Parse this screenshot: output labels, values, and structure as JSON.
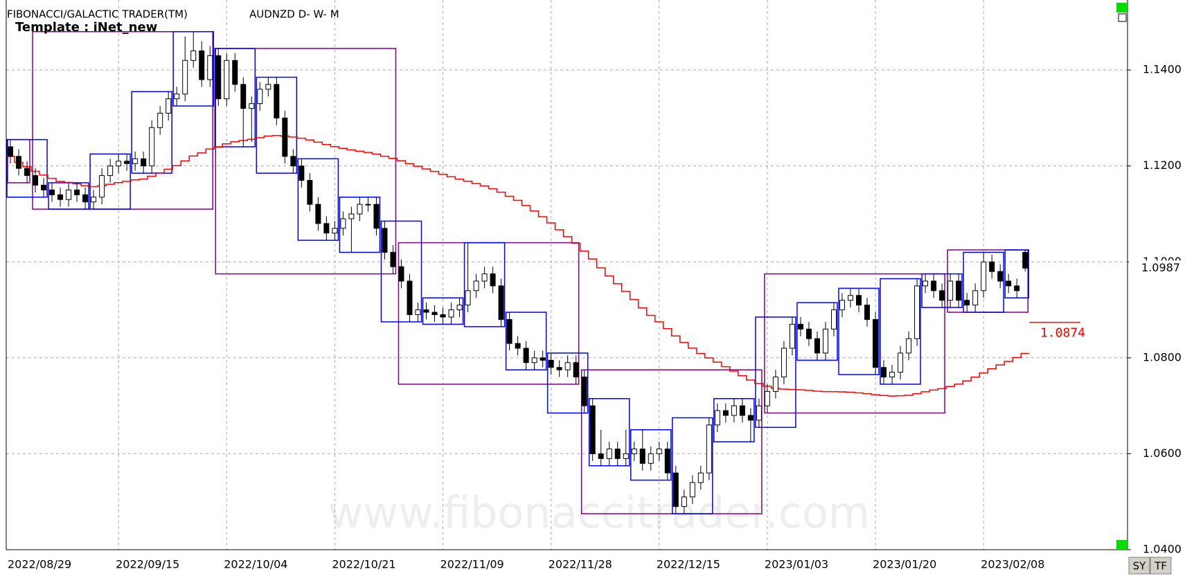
{
  "chart_data": {
    "type": "candlestick",
    "title": "FIBONACCI/GALACTIC TRADER(TM)",
    "subtitle": "AUDNZD D- W- M",
    "template": "Template : iNet_new",
    "watermark": "www.fibonaccitrader.com",
    "categories": [
      "2022/08/29",
      null,
      null,
      null,
      null,
      null,
      null,
      null,
      null,
      null,
      null,
      null,
      null,
      "2022/09/15",
      null,
      null,
      null,
      null,
      null,
      null,
      null,
      null,
      null,
      null,
      null,
      null,
      "2022/10/04",
      null,
      null,
      null,
      null,
      null,
      null,
      null,
      null,
      null,
      null,
      null,
      null,
      "2022/10/21",
      null,
      null,
      null,
      null,
      null,
      null,
      null,
      null,
      null,
      null,
      null,
      null,
      "2022/11/09",
      null,
      null,
      null,
      null,
      null,
      null,
      null,
      null,
      null,
      null,
      null,
      null,
      "2022/11/28",
      null,
      null,
      null,
      null,
      null,
      null,
      null,
      null,
      null,
      null,
      null,
      null,
      "2022/12/15",
      null,
      null,
      null,
      null,
      null,
      null,
      null,
      null,
      null,
      null,
      null,
      null,
      "2023/01/03",
      null,
      null,
      null,
      null,
      null,
      null,
      null,
      null,
      null,
      null,
      null,
      null,
      "2023/01/20",
      null,
      null,
      null,
      null,
      null,
      null,
      null,
      null,
      null,
      null,
      null,
      null,
      "2023/02/08",
      null,
      null,
      null,
      null,
      null
    ],
    "open": [
      1.124,
      1.122,
      1.1195,
      1.118,
      1.116,
      1.115,
      1.114,
      1.113,
      1.115,
      1.114,
      1.1125,
      1.1135,
      1.118,
      1.12,
      1.121,
      1.1205,
      1.1215,
      1.12,
      1.128,
      1.131,
      1.134,
      1.135,
      1.142,
      1.144,
      1.138,
      1.143,
      1.134,
      1.142,
      1.137,
      1.132,
      1.133,
      1.136,
      1.137,
      1.13,
      1.122,
      1.12,
      1.117,
      1.112,
      1.108,
      1.106,
      1.107,
      1.109,
      1.11,
      1.112,
      1.112,
      1.107,
      1.102,
      1.099,
      1.096,
      1.089,
      1.09,
      1.0895,
      1.089,
      1.0885,
      1.09,
      1.091,
      1.094,
      1.096,
      1.0975,
      1.095,
      1.088,
      1.083,
      1.082,
      1.079,
      1.08,
      1.0795,
      1.078,
      1.0775,
      1.079,
      1.076,
      1.07,
      1.06,
      1.059,
      1.061,
      1.059,
      1.06,
      1.061,
      1.058,
      1.06,
      1.061,
      1.056,
      1.049,
      1.051,
      1.054,
      1.056,
      1.066,
      1.069,
      1.068,
      1.07,
      1.068,
      1.067,
      1.07,
      1.073,
      1.076,
      1.082,
      1.087,
      1.086,
      1.084,
      1.081,
      1.086,
      1.09,
      1.092,
      1.093,
      1.091,
      1.088,
      1.078,
      1.076,
      1.077,
      1.081,
      1.084,
      1.095,
      1.096,
      1.094,
      1.092,
      1.096,
      1.092,
      1.091,
      1.094,
      1.1,
      1.098,
      1.096,
      1.095,
      1.102
    ],
    "high": [
      1.1255,
      1.1235,
      1.121,
      1.1195,
      1.1175,
      1.1165,
      1.1155,
      1.1165,
      1.1165,
      1.1155,
      1.115,
      1.1195,
      1.1215,
      1.1225,
      1.1225,
      1.123,
      1.123,
      1.1295,
      1.1325,
      1.1355,
      1.1365,
      1.147,
      1.148,
      1.146,
      1.145,
      1.1445,
      1.1435,
      1.1435,
      1.1385,
      1.1345,
      1.1375,
      1.1385,
      1.1385,
      1.1315,
      1.1235,
      1.1215,
      1.1185,
      1.1135,
      1.1095,
      1.1085,
      1.1105,
      1.1115,
      1.1135,
      1.1135,
      1.1135,
      1.1085,
      1.1035,
      1.1005,
      1.0975,
      1.0915,
      1.0915,
      1.091,
      1.0905,
      1.0915,
      1.0925,
      1.104,
      1.0975,
      1.099,
      1.099,
      1.0965,
      1.0895,
      1.0845,
      1.0835,
      1.0815,
      1.0815,
      1.081,
      1.0795,
      1.0805,
      1.0805,
      1.0775,
      1.0715,
      1.065,
      1.0625,
      1.0625,
      1.065,
      1.0625,
      1.065,
      1.0615,
      1.0625,
      1.0625,
      1.0575,
      1.0525,
      1.0555,
      1.0575,
      1.0675,
      1.0705,
      1.0705,
      1.0715,
      1.0715,
      1.0695,
      1.0715,
      1.0745,
      1.0775,
      1.0835,
      1.0885,
      1.0885,
      1.0875,
      1.0855,
      1.0875,
      1.0915,
      1.0935,
      1.0945,
      1.0945,
      1.0925,
      1.0895,
      1.0795,
      1.0785,
      1.0825,
      1.0855,
      1.0965,
      1.0975,
      1.0975,
      1.0955,
      1.0975,
      1.0975,
      1.0935,
      1.0955,
      1.102,
      1.1015,
      1.0995,
      1.0975,
      1.0965,
      1.1025
    ],
    "low": [
      1.1205,
      1.118,
      1.1165,
      1.1145,
      1.1135,
      1.1125,
      1.1115,
      1.1115,
      1.1125,
      1.111,
      1.111,
      1.112,
      1.1165,
      1.1185,
      1.119,
      1.119,
      1.1185,
      1.1185,
      1.1265,
      1.1295,
      1.1325,
      1.1335,
      1.1405,
      1.1365,
      1.1365,
      1.1325,
      1.1325,
      1.1355,
      1.124,
      1.125,
      1.1315,
      1.1345,
      1.1285,
      1.1205,
      1.1185,
      1.1155,
      1.1105,
      1.1065,
      1.1045,
      1.1045,
      1.1055,
      1.102,
      1.1085,
      1.1105,
      1.1055,
      1.1005,
      1.0975,
      1.0945,
      1.0875,
      1.0875,
      1.088,
      1.0875,
      1.087,
      1.087,
      1.0885,
      1.0895,
      1.0925,
      1.0945,
      1.0935,
      1.0865,
      1.0815,
      1.0805,
      1.0775,
      1.0775,
      1.078,
      1.0765,
      1.076,
      1.076,
      1.0745,
      1.0685,
      1.0585,
      1.0575,
      1.0575,
      1.0575,
      1.0575,
      1.0585,
      1.0565,
      1.0565,
      1.0585,
      1.0545,
      1.0475,
      1.0475,
      1.0495,
      1.0525,
      1.0545,
      1.0645,
      1.0665,
      1.0665,
      1.0665,
      1.0625,
      1.0655,
      1.0685,
      1.0715,
      1.0745,
      1.0805,
      1.0845,
      1.0825,
      1.0795,
      1.0795,
      1.0845,
      1.0885,
      1.0905,
      1.0895,
      1.0865,
      1.0765,
      1.0745,
      1.0745,
      1.0755,
      1.0795,
      1.0825,
      1.0935,
      1.0925,
      1.0905,
      1.0905,
      1.0905,
      1.0895,
      1.0895,
      1.0925,
      1.0965,
      1.0945,
      1.0935,
      1.0925,
      1.098
    ],
    "close": [
      1.122,
      1.1195,
      1.118,
      1.116,
      1.115,
      1.114,
      1.113,
      1.115,
      1.114,
      1.1125,
      1.1135,
      1.118,
      1.12,
      1.121,
      1.1205,
      1.1215,
      1.12,
      1.128,
      1.131,
      1.134,
      1.135,
      1.142,
      1.144,
      1.138,
      1.143,
      1.134,
      1.142,
      1.137,
      1.132,
      1.133,
      1.136,
      1.137,
      1.13,
      1.122,
      1.12,
      1.117,
      1.112,
      1.108,
      1.106,
      1.107,
      1.109,
      1.11,
      1.112,
      1.112,
      1.107,
      1.102,
      1.099,
      1.096,
      1.089,
      1.09,
      1.0895,
      1.089,
      1.0885,
      1.09,
      1.091,
      1.094,
      1.096,
      1.0975,
      1.095,
      1.088,
      1.083,
      1.082,
      1.079,
      1.08,
      1.0795,
      1.078,
      1.0775,
      1.079,
      1.076,
      1.07,
      1.06,
      1.059,
      1.061,
      1.059,
      1.06,
      1.061,
      1.058,
      1.06,
      1.061,
      1.056,
      1.049,
      1.051,
      1.054,
      1.056,
      1.066,
      1.069,
      1.068,
      1.07,
      1.068,
      1.067,
      1.07,
      1.073,
      1.076,
      1.082,
      1.087,
      1.086,
      1.084,
      1.081,
      1.086,
      1.09,
      1.092,
      1.093,
      1.091,
      1.088,
      1.078,
      1.076,
      1.077,
      1.081,
      1.084,
      1.095,
      1.096,
      1.094,
      1.092,
      1.096,
      1.092,
      1.091,
      1.094,
      1.1,
      1.098,
      1.096,
      1.095,
      1.094,
      1.0987
    ],
    "ylim": [
      1.04,
      1.1546
    ],
    "yticks": [
      {
        "value": 1.04,
        "label": "1.0400"
      },
      {
        "value": 1.06,
        "label": "1.0600"
      },
      {
        "value": 1.08,
        "label": "1.0800"
      },
      {
        "value": 1.1,
        "label": "1.1000"
      },
      {
        "value": 1.12,
        "label": "1.1200"
      },
      {
        "value": 1.14,
        "label": "1.1400"
      }
    ],
    "grid": true,
    "last_price": 1.0987,
    "indicator_value": 1.0874,
    "up_color": "#ffffff",
    "down_color": "#000000",
    "weekly_color": "#0000ff",
    "monthly_color": "#800080",
    "indicator_color": "#ff0000"
  },
  "toolbar": {
    "buttons": [
      "SY",
      "TF"
    ]
  }
}
